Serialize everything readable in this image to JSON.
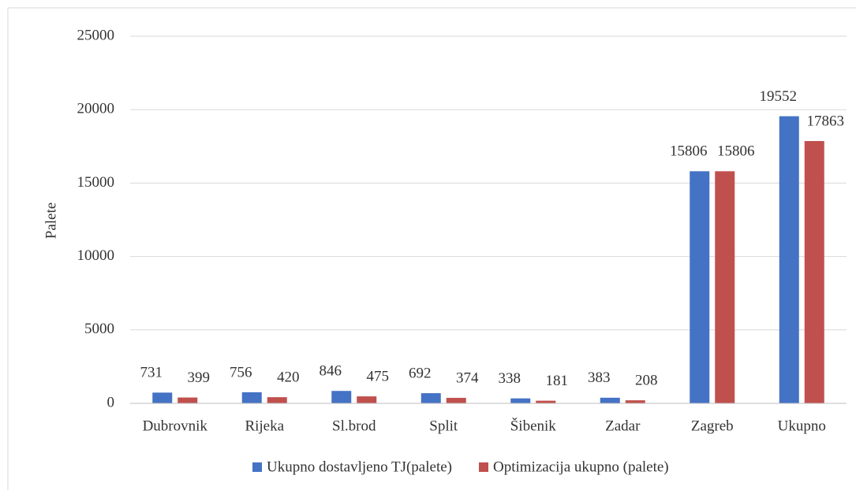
{
  "chart_data": {
    "type": "bar",
    "y_label": "Palete",
    "categories": [
      "Dubrovnik",
      "Rijeka",
      "Sl.brod",
      "Split",
      "Šibenik",
      "Zadar",
      "Zagreb",
      "Ukupno"
    ],
    "series": [
      {
        "name": "Ukupno dostavljeno TJ(palete)",
        "color": "#4472c4",
        "values": [
          731,
          756,
          846,
          692,
          338,
          383,
          15806,
          19552
        ]
      },
      {
        "name": "Optimizacija ukupno (palete)",
        "color": "#c0504d",
        "values": [
          399,
          420,
          475,
          374,
          181,
          208,
          15806,
          17863
        ]
      }
    ],
    "ylim": [
      0,
      25000
    ],
    "yticks": [
      0,
      5000,
      10000,
      15000,
      20000,
      25000
    ],
    "grid": true,
    "legend": "bottom"
  }
}
